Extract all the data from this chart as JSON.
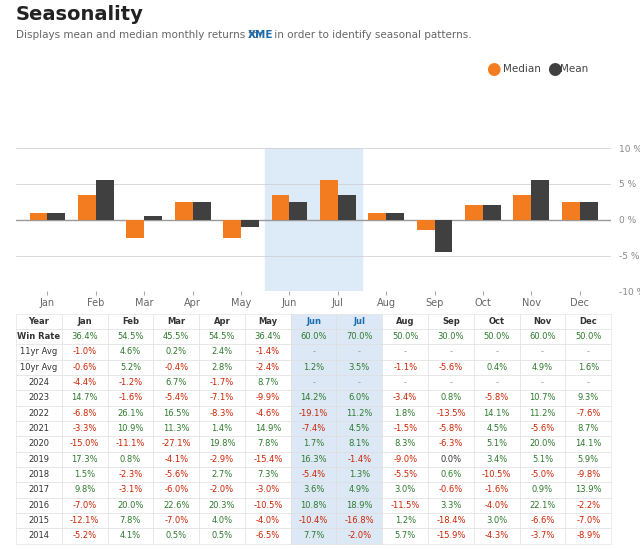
{
  "title": "Seasonality",
  "subtitle_plain": "Displays mean and median monthly returns for ",
  "subtitle_ticker": "XME",
  "subtitle_end": " in order to identify seasonal patterns.",
  "months": [
    "Jan",
    "Feb",
    "Mar",
    "Apr",
    "May",
    "Jun",
    "Jul",
    "Aug",
    "Sep",
    "Oct",
    "Nov",
    "Dec"
  ],
  "median_values": [
    1.0,
    3.5,
    -2.5,
    2.5,
    -2.5,
    3.5,
    5.5,
    1.0,
    -1.5,
    2.0,
    3.5,
    2.5
  ],
  "mean_values": [
    1.0,
    5.5,
    0.5,
    2.5,
    -1.0,
    2.5,
    3.5,
    1.0,
    -4.5,
    2.0,
    5.5,
    2.5
  ],
  "median_color": "#f47c20",
  "mean_color": "#404040",
  "highlight_months_idx": [
    5,
    6
  ],
  "highlight_color": "#ddeaf8",
  "ylim": [
    -10,
    10
  ],
  "yticks": [
    -10,
    -5,
    0,
    5,
    10
  ],
  "bg_color": "#ffffff",
  "highlight_col_color": "#dce8f5",
  "table_headers": [
    "Year",
    "Jan",
    "Feb",
    "Mar",
    "Apr",
    "May",
    "Jun",
    "Jul",
    "Aug",
    "Sep",
    "Oct",
    "Nov",
    "Dec"
  ],
  "table_rows": [
    [
      "Win Rate",
      "36.4%",
      "54.5%",
      "45.5%",
      "54.5%",
      "36.4%",
      "60.0%",
      "70.0%",
      "50.0%",
      "30.0%",
      "50.0%",
      "60.0%",
      "50.0%"
    ],
    [
      "11yr Avg",
      "-1.0%",
      "4.6%",
      "0.2%",
      "2.4%",
      "-1.4%",
      "-",
      "-",
      "-",
      "-",
      "-",
      "-",
      "-"
    ],
    [
      "10yr Avg",
      "-0.6%",
      "5.2%",
      "-0.4%",
      "2.8%",
      "-2.4%",
      "1.2%",
      "3.5%",
      "-1.1%",
      "-5.6%",
      "0.4%",
      "4.9%",
      "1.6%"
    ],
    [
      "2024",
      "-4.4%",
      "-1.2%",
      "6.7%",
      "-1.7%",
      "8.7%",
      "-",
      "-",
      "-",
      "-",
      "-",
      "-",
      "-"
    ],
    [
      "2023",
      "14.7%",
      "-1.6%",
      "-5.4%",
      "-7.1%",
      "-9.9%",
      "14.2%",
      "6.0%",
      "-3.4%",
      "0.8%",
      "-5.8%",
      "10.7%",
      "9.3%"
    ],
    [
      "2022",
      "-6.8%",
      "26.1%",
      "16.5%",
      "-8.3%",
      "-4.6%",
      "-19.1%",
      "11.2%",
      "1.8%",
      "-13.5%",
      "14.1%",
      "11.2%",
      "-7.6%"
    ],
    [
      "2021",
      "-3.3%",
      "10.9%",
      "11.3%",
      "1.4%",
      "14.9%",
      "-7.4%",
      "4.5%",
      "-1.5%",
      "-5.8%",
      "4.5%",
      "-5.6%",
      "8.7%"
    ],
    [
      "2020",
      "-15.0%",
      "-11.1%",
      "-27.1%",
      "19.8%",
      "7.8%",
      "1.7%",
      "8.1%",
      "8.3%",
      "-6.3%",
      "5.1%",
      "20.0%",
      "14.1%"
    ],
    [
      "2019",
      "17.3%",
      "0.8%",
      "-4.1%",
      "-2.9%",
      "-15.4%",
      "16.3%",
      "-1.4%",
      "-9.0%",
      "0.0%",
      "3.4%",
      "5.1%",
      "5.9%"
    ],
    [
      "2018",
      "1.5%",
      "-2.3%",
      "-5.6%",
      "2.7%",
      "7.3%",
      "-5.4%",
      "1.3%",
      "-5.5%",
      "0.6%",
      "-10.5%",
      "-5.0%",
      "-9.8%"
    ],
    [
      "2017",
      "9.8%",
      "-3.1%",
      "-6.0%",
      "-2.0%",
      "-3.0%",
      "3.6%",
      "4.9%",
      "3.0%",
      "-0.6%",
      "-1.6%",
      "0.9%",
      "13.9%"
    ],
    [
      "2016",
      "-7.0%",
      "20.0%",
      "22.6%",
      "20.3%",
      "-10.5%",
      "10.8%",
      "18.9%",
      "-11.5%",
      "3.3%",
      "-4.0%",
      "22.1%",
      "-2.2%"
    ],
    [
      "2015",
      "-12.1%",
      "7.8%",
      "-7.0%",
      "4.0%",
      "-4.0%",
      "-10.4%",
      "-16.8%",
      "1.2%",
      "-18.4%",
      "3.0%",
      "-6.6%",
      "-7.0%"
    ],
    [
      "2014",
      "-5.2%",
      "4.1%",
      "0.5%",
      "0.5%",
      "-6.5%",
      "7.7%",
      "-2.0%",
      "5.7%",
      "-15.9%",
      "-4.3%",
      "-3.7%",
      "-8.9%"
    ]
  ]
}
